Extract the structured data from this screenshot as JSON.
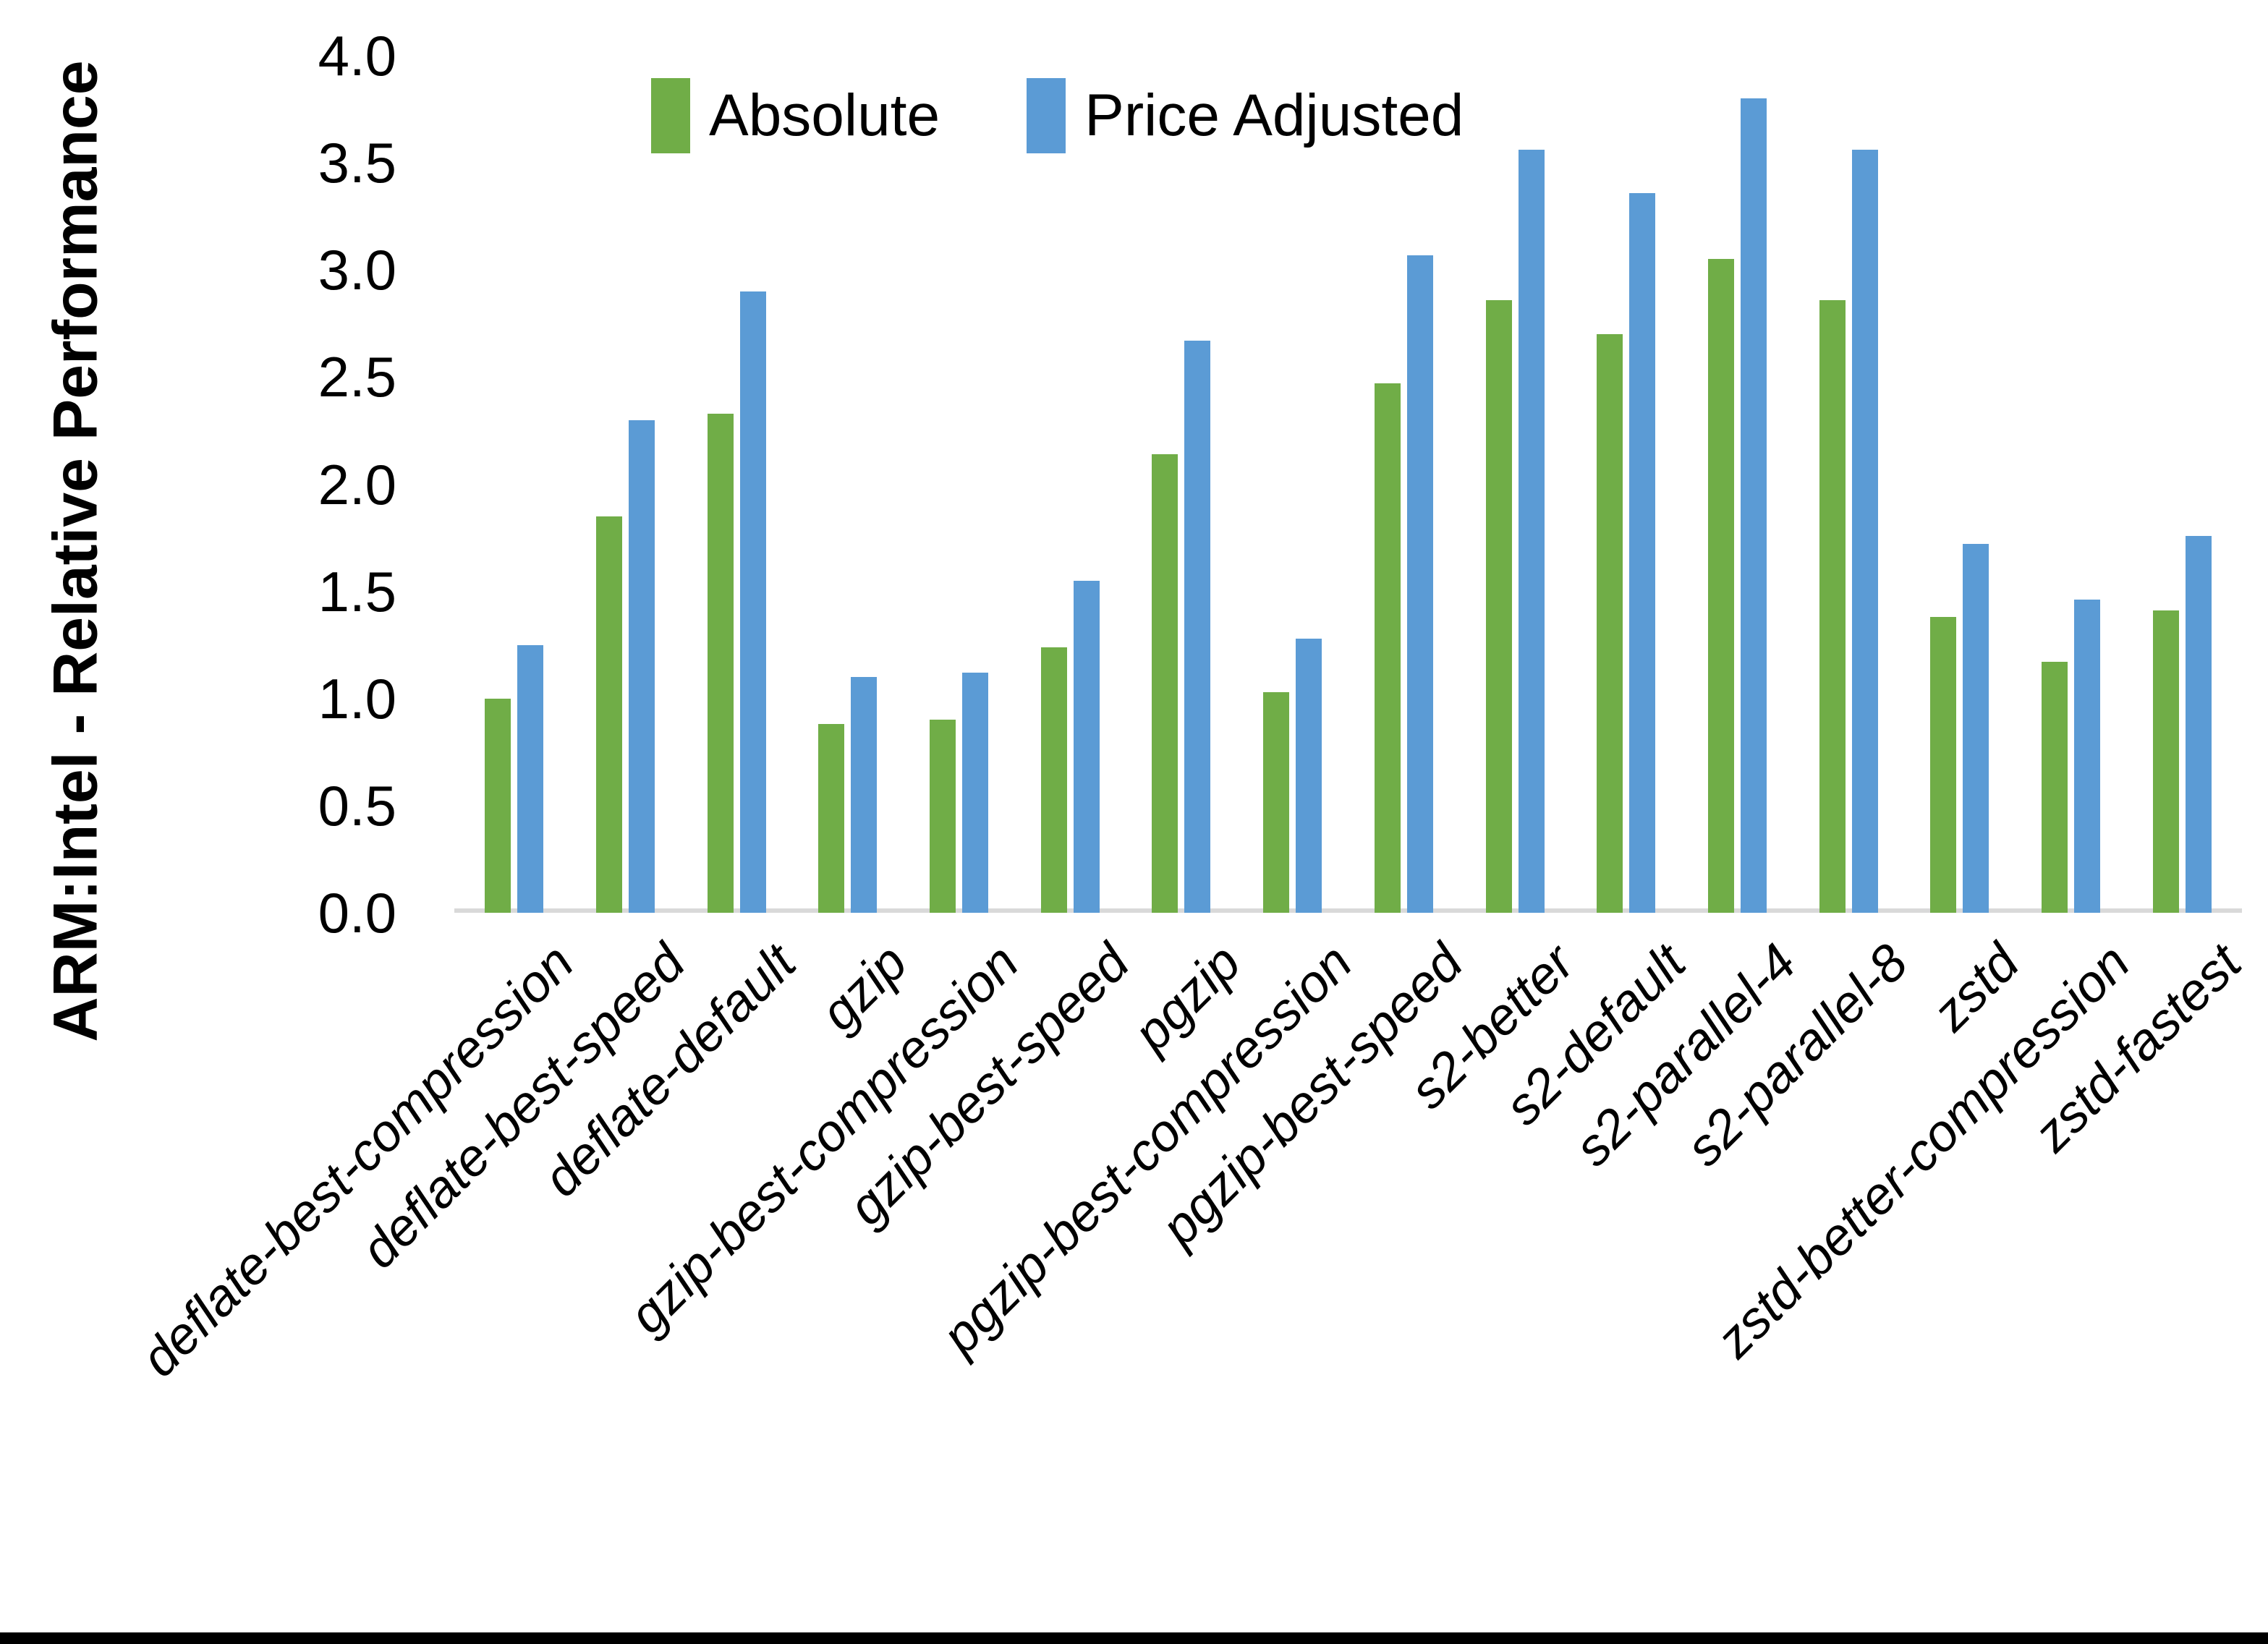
{
  "chart_data": {
    "type": "bar",
    "title": "",
    "xlabel": "",
    "ylabel": "ARM:Intel - Relative Performance",
    "ylim": [
      0.0,
      4.0
    ],
    "ytick_labels": [
      "0.0",
      "0.5",
      "1.0",
      "1.5",
      "2.0",
      "2.5",
      "3.0",
      "3.5",
      "4.0"
    ],
    "grid": false,
    "legend_position": "top-center",
    "categories": [
      "deflate-best-compression",
      "deflate-best-speed",
      "deflate-default",
      "gzip",
      "gzip-best-compression",
      "gzip-best-speed",
      "pgzip",
      "pgzip-best-compression",
      "pgzip-best-speed",
      "s2-better",
      "s2-default",
      "s2-parallel-4",
      "s2-parallel-8",
      "zstd",
      "zstd-better-compression",
      "zstd-fastest"
    ],
    "series": [
      {
        "name": "Absolute",
        "color": "#70AD47",
        "values": [
          1.0,
          1.85,
          2.33,
          0.88,
          0.9,
          1.24,
          2.14,
          1.03,
          2.47,
          2.86,
          2.7,
          3.05,
          2.86,
          1.38,
          1.17,
          1.41
        ]
      },
      {
        "name": "Price Adjusted",
        "color": "#5B9BD5",
        "values": [
          1.25,
          2.3,
          2.9,
          1.1,
          1.12,
          1.55,
          2.67,
          1.28,
          3.07,
          3.56,
          3.36,
          3.8,
          3.56,
          1.72,
          1.46,
          1.76
        ]
      }
    ],
    "axis_line_color": "#D9D9D9",
    "text_color": "#000000"
  }
}
